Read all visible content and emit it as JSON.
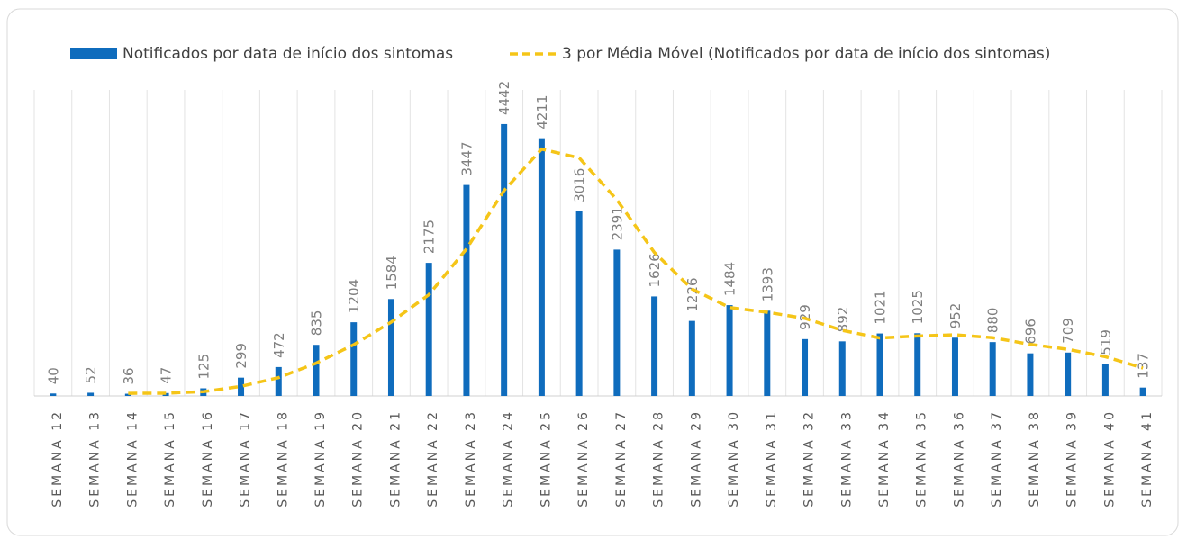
{
  "chart_data": {
    "type": "bar",
    "categories": [
      "SEMANA 12",
      "SEMANA 13",
      "SEMANA 14",
      "SEMANA 15",
      "SEMANA 16",
      "SEMANA 17",
      "SEMANA 18",
      "SEMANA 19",
      "SEMANA 20",
      "SEMANA 21",
      "SEMANA 22",
      "SEMANA 23",
      "SEMANA 24",
      "SEMANA 25",
      "SEMANA 26",
      "SEMANA 27",
      "SEMANA 28",
      "SEMANA 29",
      "SEMANA 30",
      "SEMANA 31",
      "SEMANA 32",
      "SEMANA 33",
      "SEMANA 34",
      "SEMANA 35",
      "SEMANA 36",
      "SEMANA 37",
      "SEMANA 38",
      "SEMANA 39",
      "SEMANA 40",
      "SEMANA 41"
    ],
    "series": [
      {
        "name": "Notificados por data de início dos sintomas",
        "color": "#0f6cbd",
        "values": [
          40,
          52,
          36,
          47,
          125,
          299,
          472,
          835,
          1204,
          1584,
          2175,
          3447,
          4442,
          4211,
          3016,
          2391,
          1626,
          1226,
          1484,
          1393,
          929,
          892,
          1021,
          1025,
          952,
          880,
          696,
          709,
          519,
          137
        ]
      },
      {
        "name": "3 por Média Móvel (Notificados por data de início dos sintomas)",
        "color": "#f5c518",
        "values": [
          null,
          null,
          42.67,
          45,
          69.33,
          157,
          298.67,
          535.33,
          837,
          1207.67,
          1654.33,
          2402,
          3354.67,
          4033.33,
          3889.67,
          3206,
          2344.33,
          1747.67,
          1445.33,
          1367.67,
          1268.67,
          1071.33,
          947.33,
          979.33,
          999.33,
          952.33,
          842.67,
          761.67,
          641.33,
          455
        ]
      }
    ],
    "ylim": [
      0,
      5000
    ],
    "legend": "top"
  }
}
